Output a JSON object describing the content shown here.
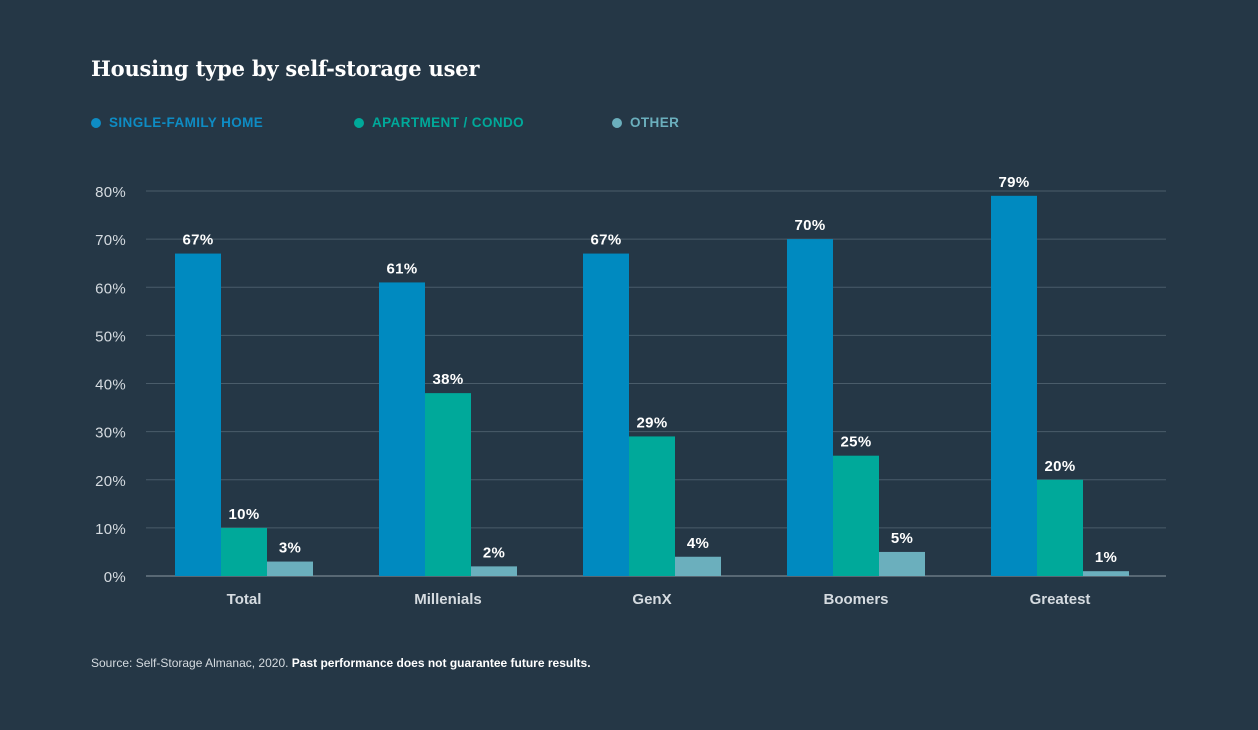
{
  "title": "Housing type by self-storage user",
  "colors": {
    "background": "#253746",
    "single_family": "#008AC0",
    "apartment": "#00A99A",
    "other": "#6BAFBD",
    "grid": "#4A5C6A",
    "axis_text": "#D5DBE0"
  },
  "legend": [
    {
      "label": "SINGLE-FAMILY HOME",
      "color": "#0E8CC4"
    },
    {
      "label": "APARTMENT / CONDO",
      "color": "#00A99A"
    },
    {
      "label": "OTHER",
      "color": "#6BAFBD"
    }
  ],
  "chart_data": {
    "type": "bar",
    "title": "Housing type by self-storage user",
    "categories": [
      "Total",
      "Millenials",
      "GenX",
      "Boomers",
      "Greatest"
    ],
    "series": [
      {
        "name": "SINGLE-FAMILY HOME",
        "values": [
          67,
          61,
          67,
          70,
          79
        ],
        "labels": [
          "67%",
          "61%",
          "67%",
          "70%",
          "79%"
        ]
      },
      {
        "name": "APARTMENT / CONDO",
        "values": [
          10,
          38,
          29,
          25,
          20
        ],
        "labels": [
          "10%",
          "38%",
          "29%",
          "25%",
          "20%"
        ]
      },
      {
        "name": "OTHER",
        "values": [
          3,
          2,
          4,
          5,
          1
        ],
        "labels": [
          "3%",
          "2%",
          "4%",
          "5%",
          "1%"
        ]
      }
    ],
    "ylim": [
      0,
      80
    ],
    "yticks": [
      0,
      10,
      20,
      30,
      40,
      50,
      60,
      70,
      80
    ],
    "ytick_labels": [
      "0%",
      "10%",
      "20%",
      "30%",
      "40%",
      "50%",
      "60%",
      "70%",
      "80%"
    ],
    "xlabel": "",
    "ylabel": "",
    "grid": true,
    "legend_position": "top-left"
  },
  "source": {
    "prefix": "Source: Self-Storage Almanac, 2020.",
    "disclaimer": "Past performance does not guarantee future results."
  }
}
